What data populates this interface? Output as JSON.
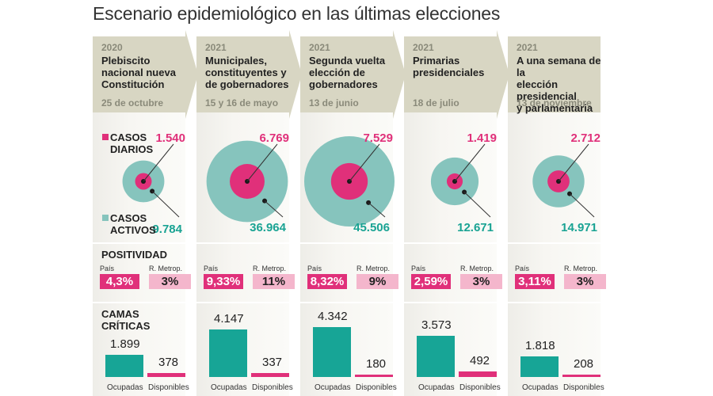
{
  "title": "Escenario epidemiológico en las últimas elecciones",
  "legend": {
    "daily": {
      "label_1": "CASOS",
      "label_2": "DIARIOS",
      "color": "#e0307a"
    },
    "active": {
      "label_1": "CASOS",
      "label_2": "ACTIVOS",
      "color": "#86c4bd"
    }
  },
  "sections": {
    "positivity": "POSITIVIDAD",
    "beds": "CAMAS CRÍTICAS"
  },
  "labels": {
    "pais": "País",
    "rm": "R. Metrop.",
    "occupied": "Ocupadas",
    "available": "Disponibles"
  },
  "colors": {
    "header": "#d8d6c3",
    "pink": "#e0307a",
    "light_pink": "#f4b6cc",
    "teal_circle": "#86c4bd",
    "teal_bar": "#17a596",
    "teal_text": "#19a393"
  },
  "chart_data": {
    "type": "bar",
    "title": "Escenario epidemiológico en las últimas elecciones",
    "categories": [
      "Plebiscito nacional nueva Constitución",
      "Municipales, constituyentes y de gobernadores",
      "Segunda vuelta elección de gobernadores",
      "Primarias presidenciales",
      "A una semana de la elección presidencial y parlamentaria"
    ],
    "series": [
      {
        "name": "Casos diarios",
        "values": [
          1540,
          6769,
          7529,
          1419,
          2712
        ]
      },
      {
        "name": "Casos activos",
        "values": [
          9784,
          36964,
          45506,
          12671,
          14971
        ]
      },
      {
        "name": "Positividad País (%)",
        "values": [
          4.3,
          9.33,
          8.32,
          2.59,
          3.11
        ]
      },
      {
        "name": "Positividad R. Metrop. (%)",
        "values": [
          3,
          11,
          9,
          3,
          3
        ]
      },
      {
        "name": "Camas críticas ocupadas",
        "values": [
          1899,
          4147,
          4342,
          3573,
          1818
        ]
      },
      {
        "name": "Camas críticas disponibles",
        "values": [
          378,
          337,
          180,
          492,
          208
        ]
      }
    ]
  },
  "columns": [
    {
      "year": "2020",
      "event": [
        "Plebiscito",
        "nacional nueva",
        "Constitución"
      ],
      "date": "25 de octubre",
      "daily": "1.540",
      "active": "9.784",
      "pais": "4,3%",
      "rm": "3%",
      "occupied": "1.899",
      "available": "378",
      "daily_n": 1540,
      "active_n": 9784,
      "occupied_n": 1899,
      "available_n": 378
    },
    {
      "year": "2021",
      "event": [
        "Municipales,",
        "constituyentes y",
        "de gobernadores"
      ],
      "date": "15 y 16 de mayo",
      "daily": "6.769",
      "active": "36.964",
      "pais": "9,33%",
      "rm": "11%",
      "occupied": "4.147",
      "available": "337",
      "daily_n": 6769,
      "active_n": 36964,
      "occupied_n": 4147,
      "available_n": 337
    },
    {
      "year": "2021",
      "event": [
        "Segunda vuelta",
        "elección de",
        "gobernadores"
      ],
      "date": "13 de junio",
      "daily": "7.529",
      "active": "45.506",
      "pais": "8,32%",
      "rm": "9%",
      "occupied": "4.342",
      "available": "180",
      "daily_n": 7529,
      "active_n": 45506,
      "occupied_n": 4342,
      "available_n": 180
    },
    {
      "year": "2021",
      "event": [
        "Primarias",
        "presidenciales",
        ""
      ],
      "date": "18 de julio",
      "daily": "1.419",
      "active": "12.671",
      "pais": "2,59%",
      "rm": "3%",
      "occupied": "3.573",
      "available": "492",
      "daily_n": 1419,
      "active_n": 12671,
      "occupied_n": 3573,
      "available_n": 492
    },
    {
      "year": "2021",
      "event": [
        "A una semana de la",
        "elección presidencial",
        "y parlamentaria"
      ],
      "date": "13 de noviembre",
      "daily": "2.712",
      "active": "14.971",
      "pais": "3,11%",
      "rm": "3%",
      "occupied": "1.818",
      "available": "208",
      "daily_n": 2712,
      "active_n": 14971,
      "occupied_n": 1818,
      "available_n": 208
    }
  ]
}
